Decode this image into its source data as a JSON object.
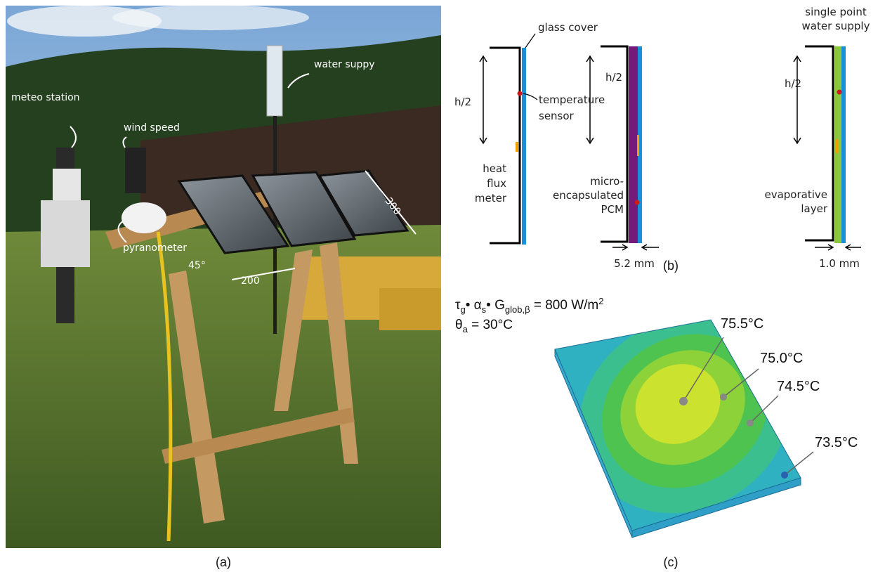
{
  "panel_a": {
    "caption": "(a)",
    "labels": {
      "meteo_station": "meteo station",
      "wind_speed": "wind speed",
      "water_supply": "water suppy",
      "pyranometer": "pyranometer",
      "tilt_angle": "45°",
      "width": "200",
      "length": "300"
    }
  },
  "panel_b": {
    "caption": "(b)",
    "reference": {
      "glass_cover": "glass cover",
      "half_height": "h/2",
      "temperature_sensor": [
        "temperature",
        "sensor"
      ],
      "heat_flux_meter": [
        "heat",
        "flux",
        "meter"
      ]
    },
    "pcm": {
      "half_height": "h/2",
      "material": [
        "micro-",
        "encapsulated",
        "PCM"
      ],
      "thickness": "5.2 mm"
    },
    "evaporative": {
      "water_supply": [
        "single point",
        "water supply"
      ],
      "half_height": "h/2",
      "layer": [
        "evaporative",
        "layer"
      ],
      "thickness": "1.0 mm"
    }
  },
  "panel_c": {
    "caption": "(c)",
    "irradiance": [
      "τ",
      "g",
      "• α",
      "s",
      "• G",
      "glob,β",
      " = 800 W/m",
      "2"
    ],
    "ambient": [
      "θ",
      "a",
      " = 30°C"
    ],
    "temperatures": [
      "75.5°C",
      "75.0°C",
      "74.5°C",
      "73.5°C"
    ]
  }
}
